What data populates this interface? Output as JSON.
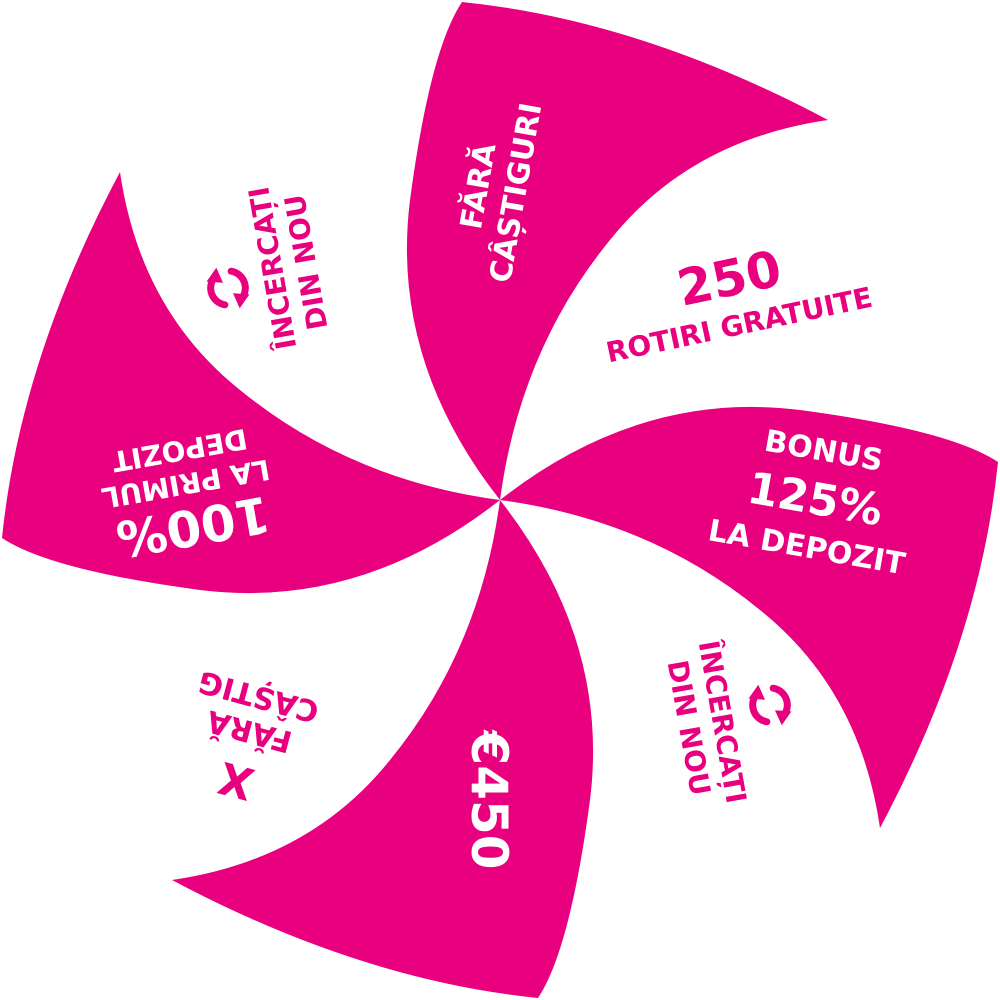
{
  "wheel": {
    "colors": {
      "accent": "#e8007f",
      "background": "#ffffff"
    },
    "segments": [
      {
        "style": "filled",
        "lines": [
          "FĂRĂ",
          "CÂȘTIGURI"
        ]
      },
      {
        "style": "plain",
        "lines": [
          "250",
          "ROTIRI GRATUITE"
        ]
      },
      {
        "style": "filled",
        "lines": [
          "BONUS",
          "125%",
          "LA DEPOZIT"
        ]
      },
      {
        "style": "plain",
        "icon": "retry-arrows-icon",
        "lines": [
          "ÎNCERCAȚI",
          "DIN NOU"
        ]
      },
      {
        "style": "filled",
        "lines": [
          "€450"
        ]
      },
      {
        "style": "plain",
        "icon": "x-mark",
        "lines": [
          "X",
          "FĂRĂ",
          "CÂȘTIG"
        ]
      },
      {
        "style": "filled",
        "lines": [
          "100%",
          "LA PRIMUL",
          "DEPOZIT"
        ]
      },
      {
        "style": "plain",
        "icon": "retry-arrows-icon",
        "lines": [
          "ÎNCERCAȚI",
          "DIN NOU"
        ]
      }
    ]
  }
}
